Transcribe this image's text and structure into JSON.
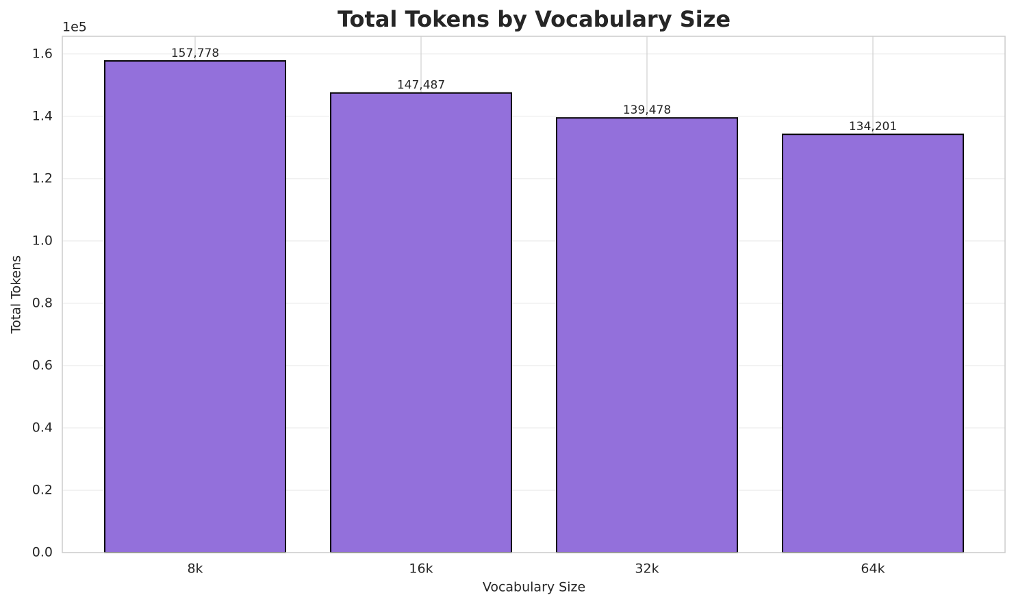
{
  "chart_data": {
    "type": "bar",
    "title": "Total Tokens by Vocabulary Size",
    "x_label": "Vocabulary Size",
    "y_label": "Total Tokens",
    "y_offset_label": "1e5",
    "categories": [
      "8k",
      "16k",
      "32k",
      "64k"
    ],
    "values": [
      157778,
      147487,
      139478,
      134201
    ],
    "value_labels": [
      "157,778",
      "147,487",
      "139,478",
      "134,201"
    ],
    "color": "#9370db",
    "ylim": [
      0,
      165667
    ],
    "yticks": [
      {
        "value": 0,
        "label": "0.0"
      },
      {
        "value": 20000,
        "label": "0.2"
      },
      {
        "value": 40000,
        "label": "0.4"
      },
      {
        "value": 60000,
        "label": "0.6"
      },
      {
        "value": 80000,
        "label": "0.8"
      },
      {
        "value": 100000,
        "label": "1.0"
      },
      {
        "value": 120000,
        "label": "1.2"
      },
      {
        "value": 140000,
        "label": "1.4"
      },
      {
        "value": 160000,
        "label": "1.6"
      }
    ],
    "grid": true
  }
}
